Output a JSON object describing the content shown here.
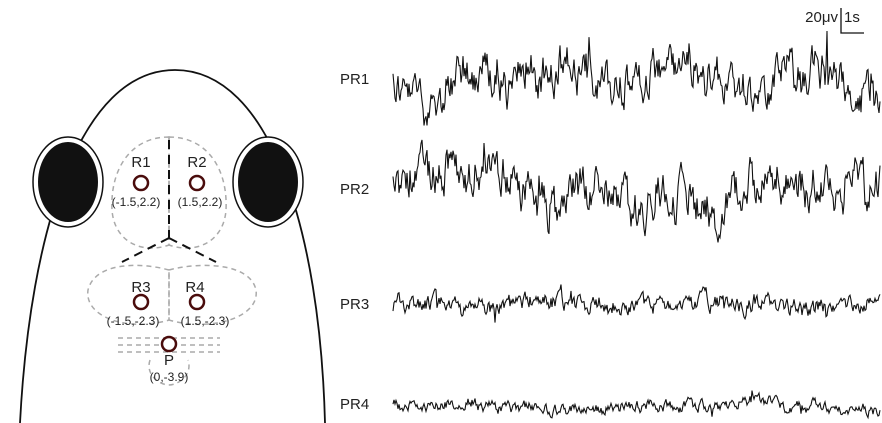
{
  "electrodes": [
    {
      "label": "R1",
      "coords": "(-1.5,2.2)"
    },
    {
      "label": "R2",
      "coords": "(1.5,2.2)"
    },
    {
      "label": "R3",
      "coords": "(-1.5,-2.3)"
    },
    {
      "label": "R4",
      "coords": "(1.5,-2.3)"
    },
    {
      "label": "P",
      "coords": "(0,-3.9)"
    }
  ],
  "traces": [
    {
      "label": "PR1"
    },
    {
      "label": "PR2"
    },
    {
      "label": "PR3"
    },
    {
      "label": "PR4"
    }
  ],
  "scale_bar": {
    "amplitude": "20μv",
    "time": "1s"
  }
}
